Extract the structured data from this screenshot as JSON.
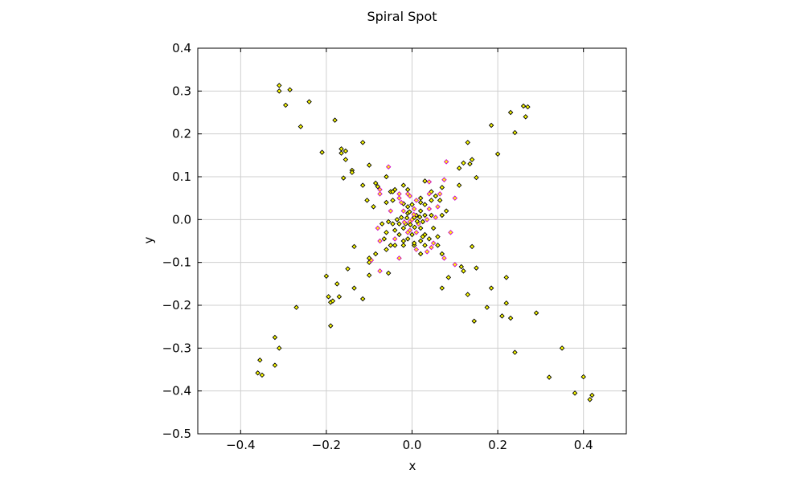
{
  "chart_data": {
    "type": "scatter",
    "title": "Spiral Spot",
    "xlabel": "x",
    "ylabel": "y",
    "xlim": [
      -0.5,
      0.5
    ],
    "ylim": [
      -0.5,
      0.4
    ],
    "xticks": [
      -0.4,
      -0.2,
      0.0,
      0.2,
      0.4
    ],
    "yticks": [
      -0.5,
      -0.4,
      -0.3,
      -0.2,
      -0.1,
      0.0,
      0.1,
      0.2,
      0.3,
      0.4
    ],
    "xtick_labels": [
      "−0.4",
      "−0.2",
      "0.0",
      "0.2",
      "0.4"
    ],
    "ytick_labels": [
      "−0.5",
      "−0.4",
      "−0.3",
      "−0.2",
      "−0.1",
      "0.0",
      "0.1",
      "0.2",
      "0.3",
      "0.4"
    ],
    "grid": true,
    "marker": "diamond",
    "colors": {
      "marker_fill": "#ffff00",
      "marker_edge": "#000000",
      "marker_edge_secondary": "#cc00cc",
      "grid": "#cfcfcf",
      "axes": "#000000"
    },
    "series": [
      {
        "points": [
          [
            -0.31,
            0.313
          ],
          [
            -0.31,
            0.3
          ],
          [
            -0.285,
            0.303
          ],
          [
            -0.295,
            0.267
          ],
          [
            -0.24,
            0.275
          ],
          [
            -0.26,
            0.217
          ],
          [
            -0.18,
            0.232
          ],
          [
            -0.21,
            0.157
          ],
          [
            -0.165,
            0.165
          ],
          [
            -0.155,
            0.16
          ],
          [
            -0.165,
            0.155
          ],
          [
            -0.115,
            0.18
          ],
          [
            -0.155,
            0.14
          ],
          [
            -0.14,
            0.115
          ],
          [
            -0.14,
            0.11
          ],
          [
            -0.16,
            0.097
          ],
          [
            -0.1,
            0.127
          ],
          [
            -0.115,
            0.08
          ],
          [
            -0.055,
            0.123
          ],
          [
            -0.085,
            0.085
          ],
          [
            -0.08,
            0.077
          ],
          [
            -0.075,
            0.07
          ],
          [
            -0.06,
            0.1
          ],
          [
            -0.105,
            0.045
          ],
          [
            -0.075,
            0.06
          ],
          [
            -0.05,
            0.065
          ],
          [
            -0.04,
            0.07
          ],
          [
            -0.03,
            0.05
          ],
          [
            -0.045,
            0.045
          ],
          [
            -0.02,
            0.037
          ],
          [
            -0.01,
            0.06
          ],
          [
            0.26,
            0.265
          ],
          [
            0.27,
            0.263
          ],
          [
            0.23,
            0.25
          ],
          [
            0.265,
            0.24
          ],
          [
            0.24,
            0.203
          ],
          [
            0.185,
            0.22
          ],
          [
            0.2,
            0.153
          ],
          [
            0.13,
            0.18
          ],
          [
            0.14,
            0.14
          ],
          [
            0.135,
            0.13
          ],
          [
            0.12,
            0.132
          ],
          [
            0.08,
            0.135
          ],
          [
            0.11,
            0.12
          ],
          [
            0.15,
            0.098
          ],
          [
            0.075,
            0.093
          ],
          [
            0.11,
            0.08
          ],
          [
            0.07,
            0.075
          ],
          [
            0.065,
            0.06
          ],
          [
            0.055,
            0.055
          ],
          [
            0.045,
            0.045
          ],
          [
            0.04,
            0.088
          ],
          [
            0.03,
            0.035
          ],
          [
            0.02,
            0.04
          ],
          [
            0.1,
            0.05
          ],
          [
            0.045,
            0.065
          ],
          [
            -0.36,
            -0.358
          ],
          [
            -0.35,
            -0.363
          ],
          [
            -0.355,
            -0.328
          ],
          [
            -0.32,
            -0.34
          ],
          [
            -0.32,
            -0.275
          ],
          [
            -0.31,
            -0.3
          ],
          [
            -0.27,
            -0.205
          ],
          [
            -0.2,
            -0.132
          ],
          [
            -0.19,
            -0.193
          ],
          [
            -0.185,
            -0.19
          ],
          [
            -0.195,
            -0.18
          ],
          [
            -0.19,
            -0.248
          ],
          [
            -0.17,
            -0.18
          ],
          [
            -0.175,
            -0.15
          ],
          [
            -0.15,
            -0.115
          ],
          [
            -0.135,
            -0.063
          ],
          [
            -0.135,
            -0.16
          ],
          [
            -0.115,
            -0.185
          ],
          [
            -0.1,
            -0.1
          ],
          [
            -0.095,
            -0.095
          ],
          [
            -0.1,
            -0.09
          ],
          [
            -0.085,
            -0.08
          ],
          [
            -0.075,
            -0.05
          ],
          [
            -0.06,
            -0.07
          ],
          [
            -0.05,
            -0.06
          ],
          [
            -0.04,
            -0.045
          ],
          [
            -0.03,
            -0.035
          ],
          [
            -0.055,
            -0.125
          ],
          [
            -0.075,
            -0.12
          ],
          [
            -0.1,
            -0.13
          ],
          [
            -0.02,
            -0.06
          ],
          [
            -0.01,
            -0.03
          ],
          [
            0.42,
            -0.41
          ],
          [
            0.415,
            -0.42
          ],
          [
            0.4,
            -0.367
          ],
          [
            0.38,
            -0.405
          ],
          [
            0.35,
            -0.3
          ],
          [
            0.32,
            -0.368
          ],
          [
            0.29,
            -0.218
          ],
          [
            0.24,
            -0.31
          ],
          [
            0.23,
            -0.23
          ],
          [
            0.22,
            -0.195
          ],
          [
            0.22,
            -0.135
          ],
          [
            0.21,
            -0.225
          ],
          [
            0.185,
            -0.16
          ],
          [
            0.175,
            -0.205
          ],
          [
            0.145,
            -0.237
          ],
          [
            0.15,
            -0.113
          ],
          [
            0.14,
            -0.063
          ],
          [
            0.13,
            -0.175
          ],
          [
            0.12,
            -0.12
          ],
          [
            0.115,
            -0.11
          ],
          [
            0.1,
            -0.105
          ],
          [
            0.085,
            -0.135
          ],
          [
            0.07,
            -0.16
          ],
          [
            0.075,
            -0.09
          ],
          [
            0.07,
            -0.08
          ],
          [
            0.06,
            -0.06
          ],
          [
            0.05,
            -0.055
          ],
          [
            0.04,
            -0.045
          ],
          [
            0.03,
            -0.035
          ],
          [
            0.035,
            -0.075
          ],
          [
            0.02,
            -0.05
          ],
          [
            0.005,
            -0.06
          ],
          [
            0.0,
            0.0
          ],
          [
            0.01,
            0.01
          ],
          [
            -0.01,
            0.015
          ],
          [
            0.015,
            -0.01
          ],
          [
            -0.015,
            -0.01
          ],
          [
            0.02,
            0.02
          ],
          [
            -0.02,
            0.02
          ],
          [
            0.02,
            -0.02
          ],
          [
            -0.02,
            -0.02
          ],
          [
            0.005,
            0.025
          ],
          [
            -0.025,
            0.005
          ],
          [
            0.025,
            -0.005
          ],
          [
            -0.005,
            -0.025
          ],
          [
            0.03,
            0.01
          ],
          [
            -0.03,
            -0.01
          ],
          [
            0.01,
            -0.03
          ],
          [
            -0.01,
            0.03
          ],
          [
            0.0,
            0.035
          ],
          [
            0.035,
            0.0
          ],
          [
            -0.035,
            0.0
          ],
          [
            0.0,
            -0.035
          ],
          [
            0.04,
            0.025
          ],
          [
            -0.04,
            -0.025
          ],
          [
            0.025,
            -0.04
          ],
          [
            -0.025,
            0.04
          ],
          [
            0.045,
            0.01
          ],
          [
            -0.045,
            -0.01
          ],
          [
            0.01,
            0.045
          ],
          [
            -0.01,
            -0.045
          ],
          [
            0.05,
            -0.02
          ],
          [
            -0.05,
            0.02
          ],
          [
            0.02,
            0.05
          ],
          [
            -0.02,
            -0.05
          ],
          [
            0.06,
            0.03
          ],
          [
            -0.06,
            -0.03
          ],
          [
            0.03,
            -0.06
          ],
          [
            -0.03,
            0.06
          ],
          [
            0.065,
            0.045
          ],
          [
            -0.065,
            -0.045
          ],
          [
            0.045,
            -0.065
          ],
          [
            -0.045,
            0.065
          ],
          [
            0.005,
            0.005
          ],
          [
            -0.005,
            -0.005
          ],
          [
            0.012,
            -0.004
          ],
          [
            -0.012,
            0.004
          ],
          [
            0.004,
            0.012
          ],
          [
            -0.004,
            -0.012
          ],
          [
            0.018,
            0.006
          ],
          [
            -0.018,
            -0.006
          ],
          [
            0.006,
            -0.018
          ],
          [
            -0.006,
            0.018
          ],
          [
            0.055,
            0.005
          ],
          [
            -0.055,
            -0.005
          ],
          [
            0.005,
            -0.055
          ],
          [
            -0.005,
            0.055
          ],
          [
            0.07,
            0.01
          ],
          [
            -0.07,
            -0.01
          ],
          [
            0.01,
            -0.07
          ],
          [
            -0.01,
            0.07
          ],
          [
            0.08,
            0.02
          ],
          [
            -0.08,
            -0.02
          ],
          [
            0.02,
            -0.08
          ],
          [
            -0.02,
            0.08
          ],
          [
            0.09,
            -0.03
          ],
          [
            -0.09,
            0.03
          ],
          [
            0.03,
            0.09
          ],
          [
            -0.03,
            -0.09
          ],
          [
            0.06,
            -0.04
          ],
          [
            -0.06,
            0.04
          ],
          [
            0.04,
            0.06
          ],
          [
            -0.04,
            -0.06
          ]
        ]
      }
    ]
  }
}
